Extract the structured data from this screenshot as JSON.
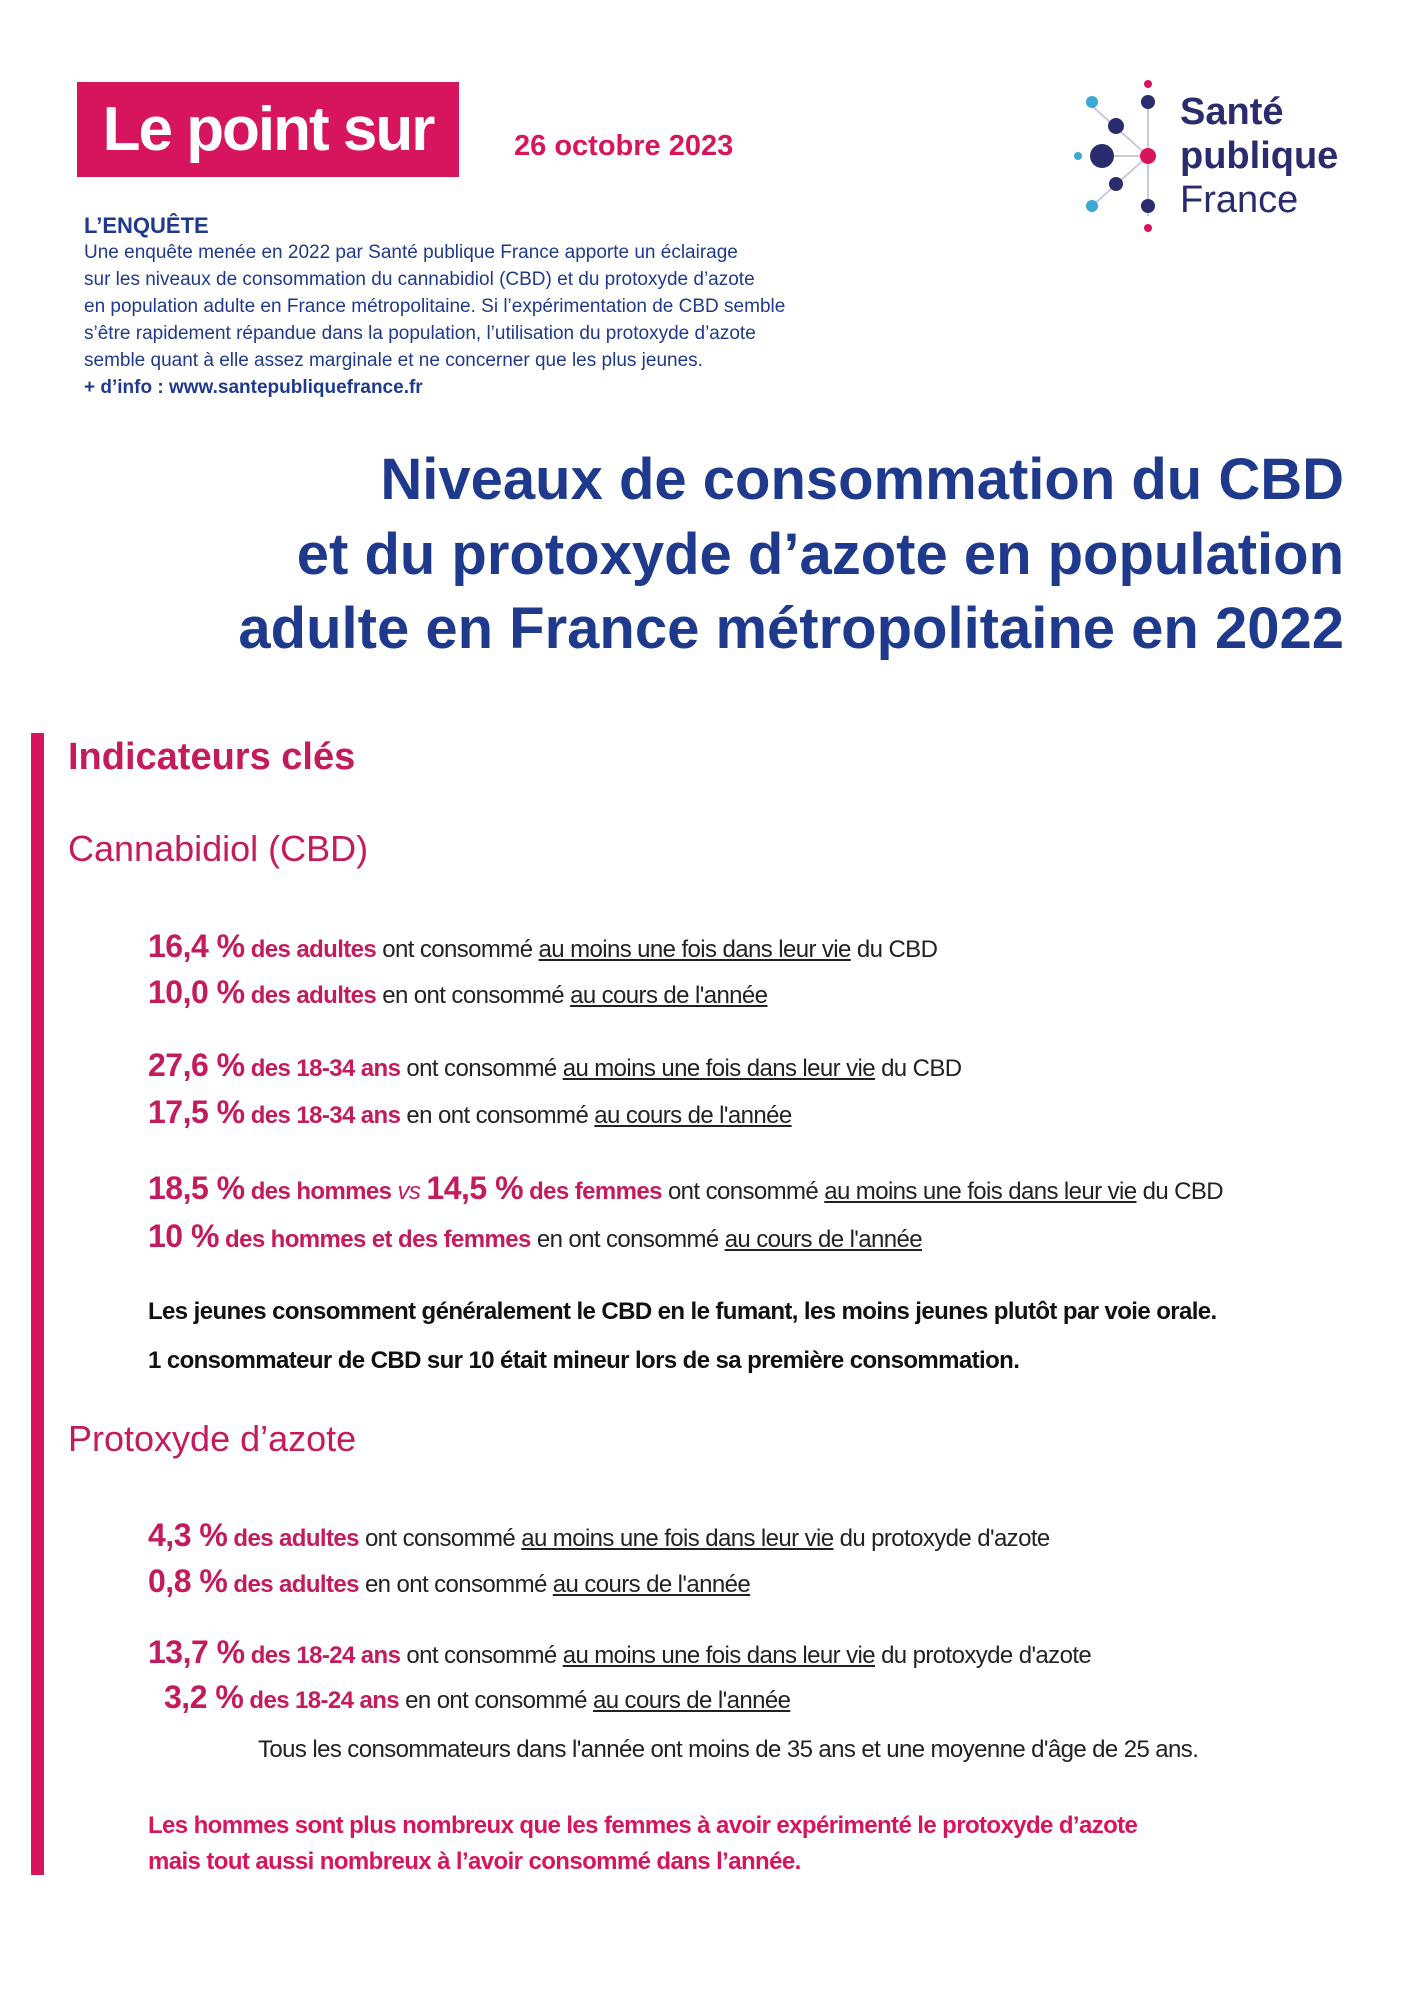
{
  "header": {
    "badge": "Le point sur",
    "date": "26 octobre 2023",
    "logo": [
      "Santé",
      "publique",
      "France"
    ]
  },
  "survey": {
    "label": "L’ENQUÊTE",
    "lines": [
      "Une enquête menée en 2022 par Santé publique France apporte un éclairage",
      "sur les niveaux de consommation du cannabidiol (CBD) et du protoxyde d’azote",
      "en population adulte en France métropolitaine. Si l’expérimentation de CBD semble",
      "s’être rapidement répandue dans la population, l’utilisation du protoxyde d’azote",
      "semble quant à elle assez marginale et ne concerner que les plus jeunes."
    ],
    "info": "+ d’info : www.santepubliquefrance.fr"
  },
  "title": [
    "Niveaux de consommation du CBD",
    "et du protoxyde d’azote en population",
    "adulte en France métropolitaine en 2022"
  ],
  "indicators": {
    "title": "Indicateurs clés",
    "sections": [
      {
        "heading": "Cannabidiol (CBD)",
        "groups": [
          [
            [
              "16,4 %",
              "des adultes",
              "ont consommé",
              "au moins une fois dans leur vie",
              "du CBD"
            ],
            [
              "10,0 %",
              "des adultes",
              "en ont consommé",
              "au cours de l'année"
            ]
          ],
          [
            [
              "27,6 %",
              "des 18-34 ans",
              "ont consommé",
              "au moins une fois dans leur vie",
              "du CBD"
            ],
            [
              "17,5 %",
              "des 18-34 ans",
              "en ont consommé",
              "au cours de l'année"
            ]
          ],
          [
            [
              "18,5 %",
              "des hommes",
              "vs",
              "14,5 %",
              "des femmes",
              "ont consommé",
              "au moins une fois dans leur vie",
              "du CBD"
            ],
            [
              "10 %",
              "des hommes et des femmes",
              "en ont consommé",
              "au cours de l'année"
            ]
          ]
        ],
        "notes": [
          "Les jeunes consomment généralement le CBD en le fumant, les moins jeunes plutôt par voie orale.",
          "1 consommateur de CBD sur 10 était mineur lors de sa première consommation."
        ]
      },
      {
        "heading": "Protoxyde d’azote",
        "groups": [
          [
            [
              "4,3 %",
              "des adultes",
              "ont consommé",
              "au moins une fois dans leur vie",
              "du protoxyde d'azote"
            ],
            [
              "0,8 %",
              "des adultes",
              "en ont consommé",
              "au cours de l'année"
            ]
          ],
          [
            [
              "13,7 %",
              "des 18-24 ans",
              "ont consommé",
              "au moins une fois dans leur vie",
              "du protoxyde d'azote"
            ],
            [
              "3,2 %",
              "des 18-24 ans",
              "en ont consommé",
              "au cours de l'année"
            ]
          ]
        ],
        "remark": "Tous les consommateurs dans l'année ont moins de 35 ans et une moyenne d'âge de 25 ans.",
        "notes": [
          "Les hommes sont plus nombreux que les femmes à avoir expérimenté le protoxyde d’azote",
          "mais tout aussi nombreux à l’avoir consommé dans l’année."
        ]
      }
    ]
  }
}
